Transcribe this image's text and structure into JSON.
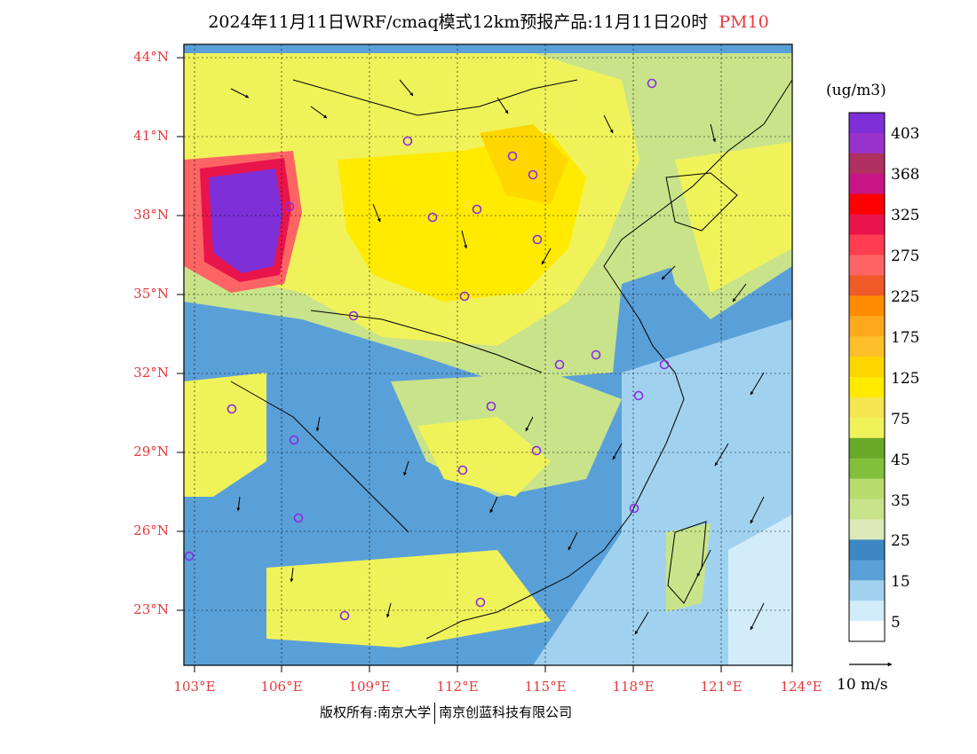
{
  "title": "2024年11月11日WRF/cmaq模式12km预报产品:11月11日20时",
  "variable": "PM10",
  "colors": {
    "title_variable": "#e8383d",
    "axis_labels": "#e8383d",
    "city_marker": "#8a2be2"
  },
  "axes": {
    "lat_labels": [
      "44°N",
      "41°N",
      "38°N",
      "35°N",
      "32°N",
      "29°N",
      "26°N",
      "23°N"
    ],
    "lon_labels": [
      "103°E",
      "106°E",
      "109°E",
      "112°E",
      "115°E",
      "118°E",
      "121°E",
      "124°E"
    ]
  },
  "colorbar": {
    "unit": "(ug/m3)",
    "labels": [
      "403",
      "368",
      "325",
      "275",
      "225",
      "175",
      "125",
      "75",
      "45",
      "35",
      "25",
      "15",
      "5"
    ],
    "colors_top_to_bottom": [
      "#7e2fd8",
      "#9932cc",
      "#b03060",
      "#c71585",
      "#ff0000",
      "#e9144c",
      "#ff3c50",
      "#ff6464",
      "#f05a28",
      "#ff8c00",
      "#ffa81e",
      "#ffbf2a",
      "#ffd700",
      "#ffea00",
      "#f5e550",
      "#f0f25a",
      "#6aa828",
      "#82c03c",
      "#b8dc6e",
      "#c9e38a",
      "#dde9b8",
      "#3c88c4",
      "#5aa0d8",
      "#a0d2f0",
      "#d2ecfa",
      "#ffffff"
    ]
  },
  "wind_reference": {
    "label": "10 m/s"
  },
  "footer": {
    "copyright": "版权所有:南京大学",
    "company": "南京创蓝科技有限公司"
  }
}
